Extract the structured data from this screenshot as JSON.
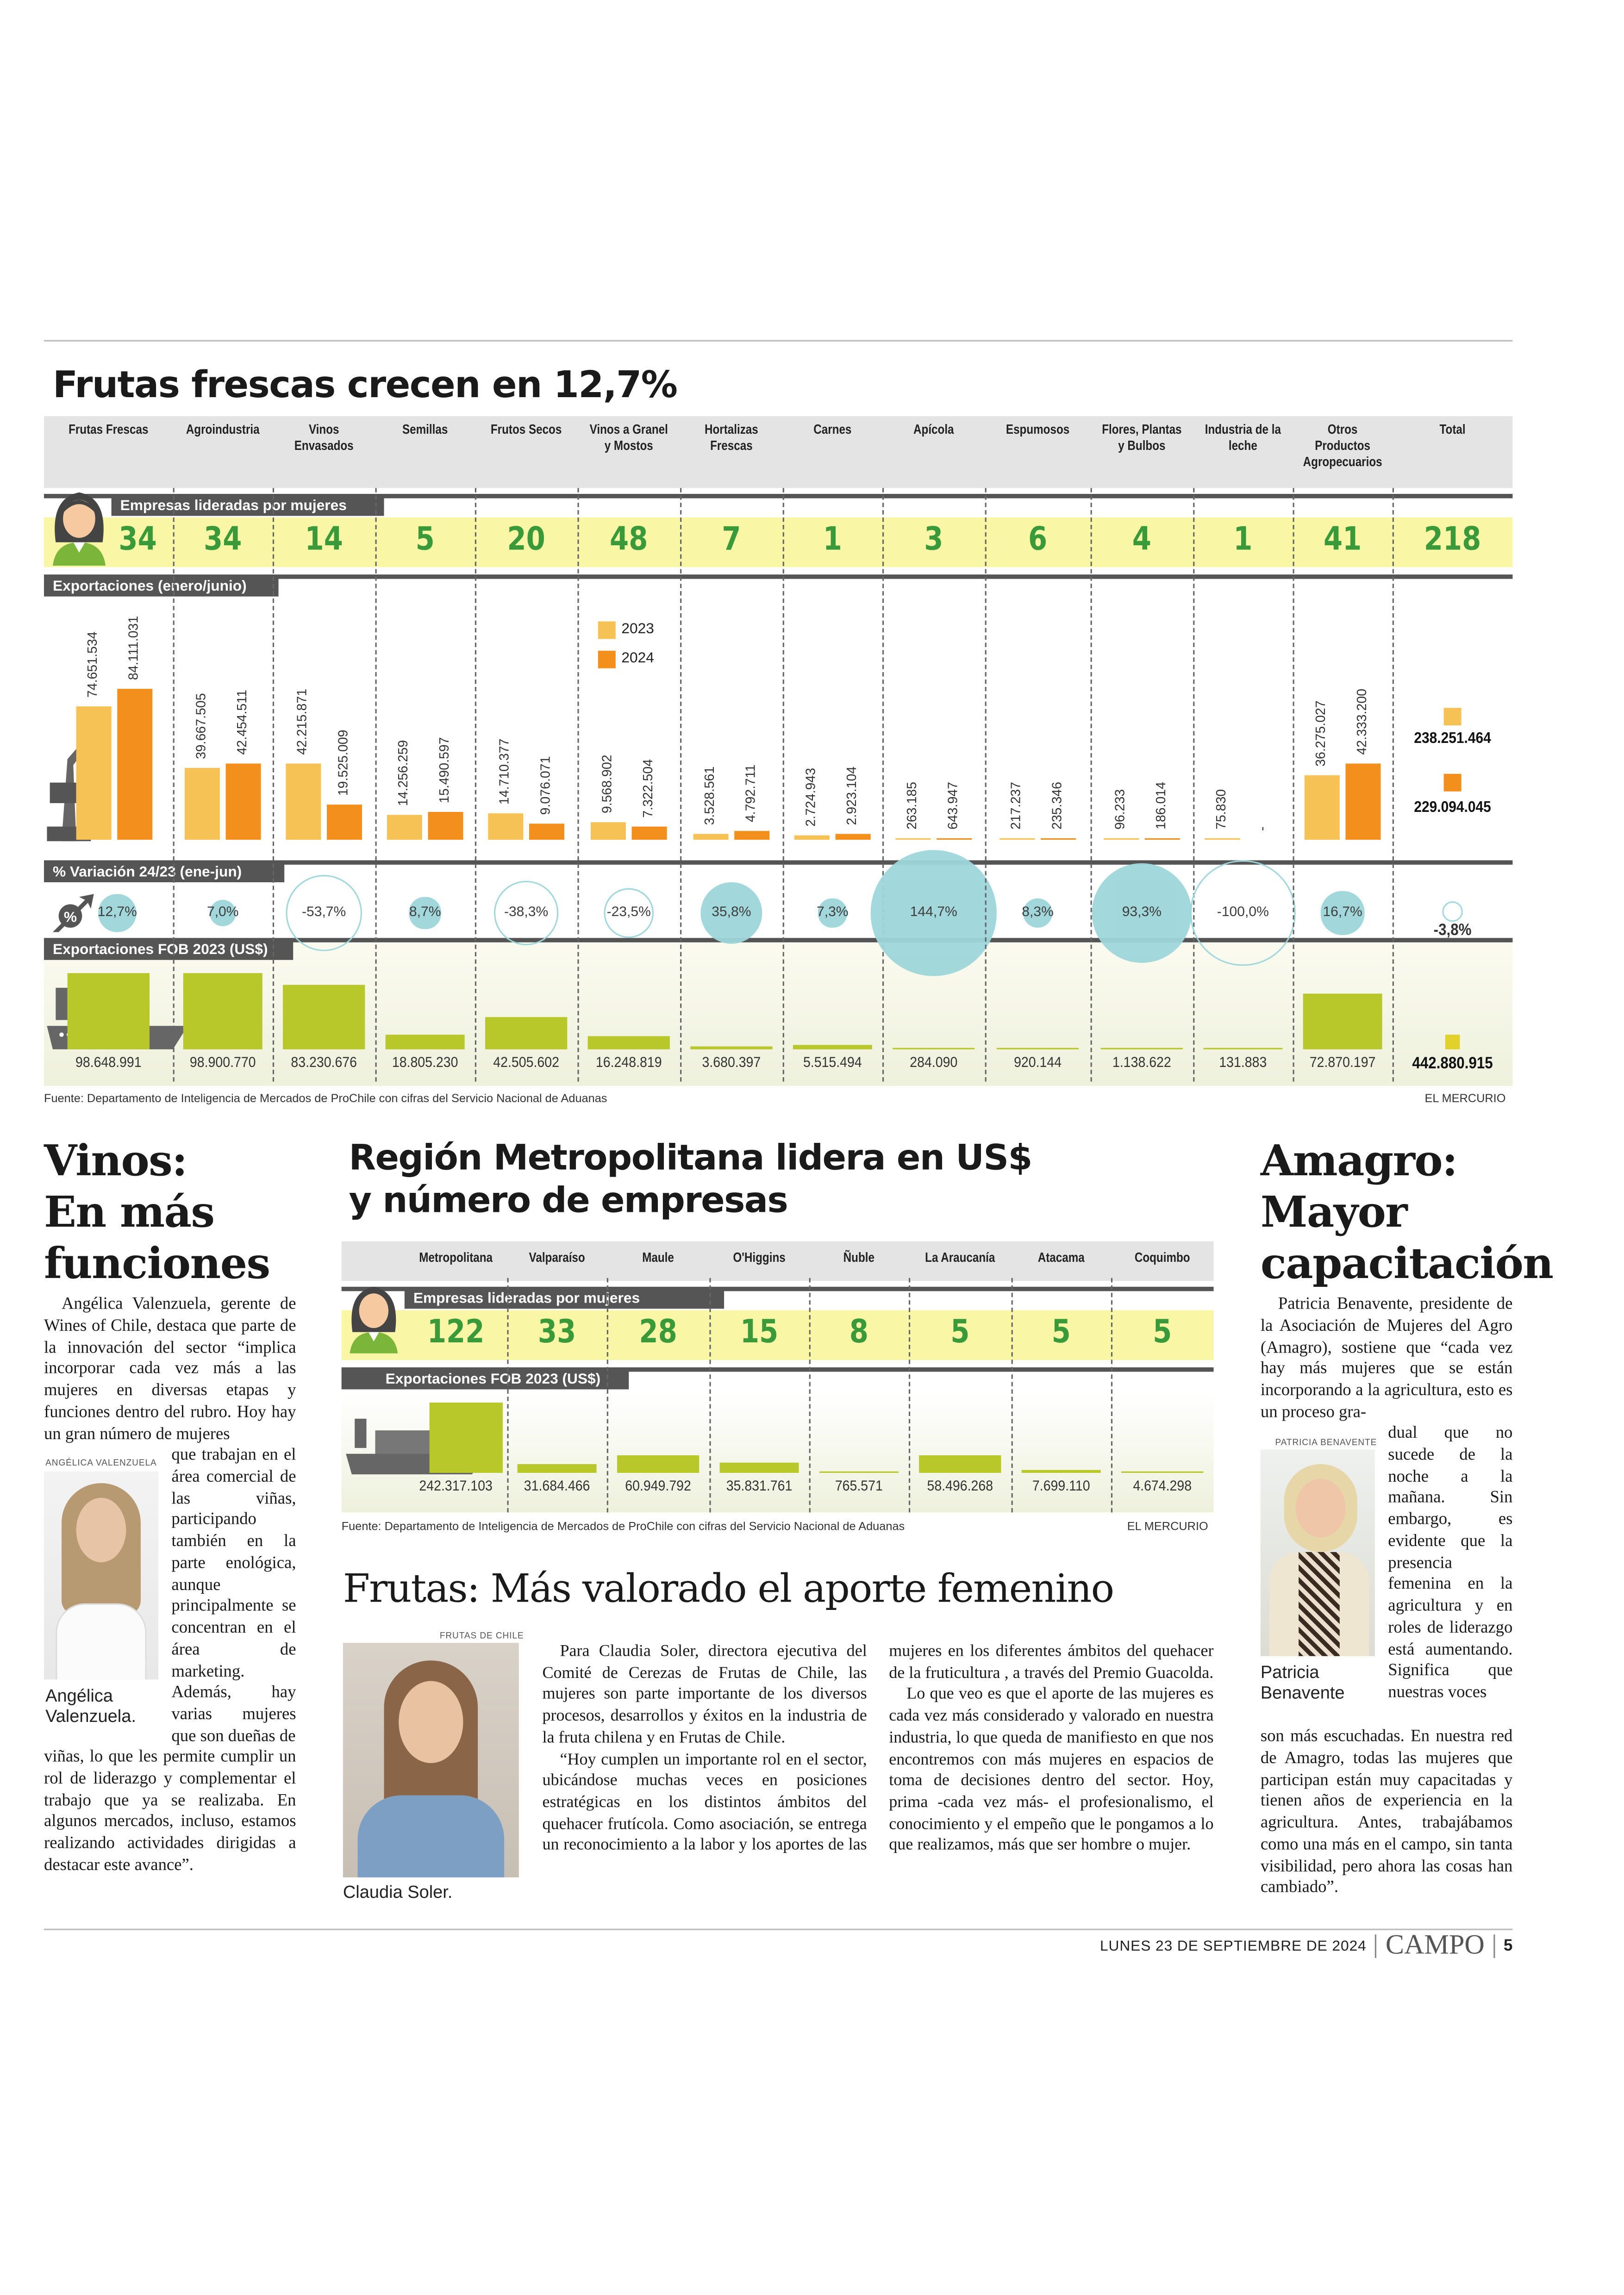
{
  "main_chart": {
    "title": "Frutas frescas crecen en 12,7%",
    "section_companies": "Empresas lideradas por mujeres",
    "section_exports": "Exportaciones  (enero/junio)",
    "section_variation": "% Variación 24/23 (ene-jun)",
    "section_fob": "Exportaciones FOB 2023 (US$)",
    "legend": [
      "2023",
      "2024"
    ],
    "source": "Fuente: Departamento de Inteligencia de Mercados de ProChile con cifras del Servicio Nacional de Aduanas",
    "credit": "EL MERCURIO"
  },
  "chart_data": [
    {
      "type": "bar",
      "title": "Frutas frescas crecen en 12,7%",
      "categories": [
        "Frutas Frescas",
        "Agroindustria",
        "Vinos Envasados",
        "Semillas",
        "Frutos Secos",
        "Vinos a Granel y Mostos",
        "Hortalizas Frescas",
        "Carnes",
        "Apícola",
        "Espumosos",
        "Flores, Plantas y Bulbos",
        "Industria de la leche",
        "Otros Productos Agropecuarios",
        "Total"
      ],
      "companies_led_by_women": [
        "34",
        "34",
        "14",
        "5",
        "20",
        "48",
        "7",
        "1",
        "3",
        "6",
        "4",
        "1",
        "41",
        "218"
      ],
      "series": [
        {
          "name": "2023",
          "color": "#f7c255",
          "values": [
            "74.651.534",
            "39.667.505",
            "42.215.871",
            "14.256.259",
            "14.710.377",
            "9.568.902",
            "3.528.561",
            "2.724.943",
            "263.185",
            "217.237",
            "96.233",
            "75.830",
            "36.275.027",
            "238.251.464"
          ]
        },
        {
          "name": "2024",
          "color": "#f38f1d",
          "values": [
            "84.111.031",
            "42.454.511",
            "19.525.009",
            "15.490.597",
            "9.076.071",
            "7.322.504",
            "4.792.711",
            "2.923.104",
            "643.947",
            "235.346",
            "186.014",
            "-",
            "42.333.200",
            "229.094.045"
          ]
        }
      ],
      "variation_pct": [
        "12,7%",
        "7,0%",
        "-53,7%",
        "8,7%",
        "-38,3%",
        "-23,5%",
        "35,8%",
        "7,3%",
        "144,7%",
        "8,3%",
        "93,3%",
        "-100,0%",
        "16,7%",
        "-3,8%"
      ],
      "fob_2023_usd": [
        "98.648.991",
        "98.900.770",
        "83.230.676",
        "18.805.230",
        "42.505.602",
        "16.248.819",
        "3.680.397",
        "5.515.494",
        "284.090",
        "920.144",
        "1.138.622",
        "131.883",
        "72.870.197",
        "442.880.915"
      ],
      "colors": {
        "bubble": "#9ed6da",
        "fob_bar": "#b8c82a",
        "companies_band": "#f9f7a6",
        "companies_number": "#3a9a3a"
      }
    },
    {
      "type": "bar",
      "title": "Región Metropolitana lidera en US$ y número de empresas",
      "categories": [
        "Metropolitana",
        "Valparaíso",
        "Maule",
        "O'Higgins",
        "Ñuble",
        "La Araucanía",
        "Atacama",
        "Coquimbo"
      ],
      "companies_led_by_women": [
        "122",
        "33",
        "28",
        "15",
        "8",
        "5",
        "5",
        "5"
      ],
      "fob_2023_usd": [
        "242.317.103",
        "31.684.466",
        "60.949.792",
        "35.831.761",
        "765.571",
        "58.496.268",
        "7.699.110",
        "4.674.298"
      ]
    }
  ],
  "regions": {
    "title_line1": "Región Metropolitana lidera en US$",
    "title_line2": "y número de empresas",
    "section_companies": "Empresas lideradas por mujeres",
    "section_fob": "Exportaciones FOB 2023 (US$)",
    "source": "Fuente: Departamento de Inteligencia de Mercados de ProChile con cifras del Servicio Nacional de Aduanas",
    "credit": "EL MERCURIO"
  },
  "vinos": {
    "title": [
      "Vinos:",
      "En más",
      "funciones"
    ],
    "photo_credit": "ANGÉLICA VALENZUELA",
    "caption": "Angélica Valenzuela.",
    "text_top": "Angélica Valenzuela, gerente de Wines of Chile, destaca que parte de la innovación del sector “implica incorporar cada vez más a las mujeres en diversas etapas y funciones dentro del rubro. Hoy hay un gran número de mujeres",
    "text_side": "que trabajan en el área comercial de las viñas, participando también en la parte enológica, aunque principalmente se concentran en el área de marketing. Además, hay varias mujeres que son dueñas de",
    "text_bottom": "viñas, lo que les permite cumplir un rol de liderazgo y complementar el trabajo que ya se realizaba. En algunos mercados, incluso, estamos realizando actividades dirigidas a destacar este avance”."
  },
  "frutas": {
    "title": "Frutas: Más valorado el aporte femenino",
    "photo_credit": "FRUTAS DE CHILE",
    "caption": "Claudia Soler.",
    "paragraphs": [
      "Para Claudia Soler, directora ejecutiva del Comité de Cerezas de Frutas de Chile, las mujeres son parte importante de los diversos procesos, desarrollos y éxitos en la industria de la fruta chilena y en Frutas de Chile.",
      "“Hoy cumplen un importante rol en el sector, ubicándose muchas veces en posiciones estratégicas en los distintos ámbitos del quehacer frutícola. Como asociación, se entrega un reconocimiento a la labor y los aportes de las mujeres en los diferentes ámbitos del quehacer de la fruticultura , a través del Premio Guacolda.",
      "Lo que veo es que el aporte de las mujeres es cada vez más considerado y valorado en nuestra industria, lo que queda de manifiesto en que nos encontremos con más mujeres en espacios de toma de decisiones dentro del sector. Hoy, prima -cada vez más- el profesionalismo, el conocimiento y el empeño que le pongamos a lo que realizamos, más que ser hombre o mujer."
    ]
  },
  "amagro": {
    "title": [
      "Amagro:",
      "Mayor",
      "capacitación"
    ],
    "photo_credit": "PATRICIA BENAVENTE",
    "caption": "Patricia Benavente",
    "text_top": "Patricia Benavente, presidente de la Asociación de Mujeres del Agro (Amagro), sostiene que “cada vez hay más mujeres que se están incorporando a la agricultura, esto es un proceso gra-",
    "text_side": "dual que no sucede de la noche a la mañana. Sin embargo, es evidente que la presencia femenina en la agricultura y en roles de liderazgo está aumentando. Significa que nuestras voces",
    "text_bottom": "son más escuchadas. En nuestra red de Amagro, todas las mujeres que participan están muy capacitadas y tienen años de experiencia en la agricultura. Antes, trabajábamos como una más en el campo, sin tanta visibilidad, pero ahora las cosas han cambiado”."
  },
  "footer": {
    "date": "LUNES 23 DE SEPTIEMBRE DE 2024",
    "section": "CAMPO",
    "page": "5"
  }
}
